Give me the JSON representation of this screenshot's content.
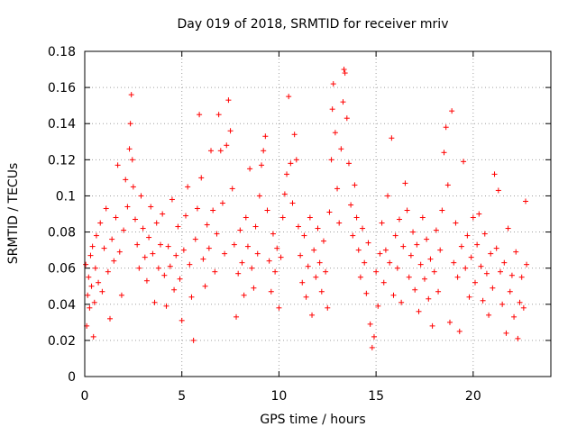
{
  "chart_data": {
    "type": "scatter",
    "title": "Day 019 of 2018, SRMTID for receiver mriv",
    "xlabel": "GPS time / hours",
    "ylabel": "SRMTID / TECUs",
    "xlim": [
      0,
      24
    ],
    "ylim": [
      0,
      0.18
    ],
    "xticks": [
      0,
      5,
      10,
      15,
      20
    ],
    "xtick_labels": [
      "0",
      "5",
      "10",
      "15",
      "20"
    ],
    "yticks": [
      0,
      0.02,
      0.04,
      0.06,
      0.08,
      0.1,
      0.12,
      0.14,
      0.16,
      0.18
    ],
    "ytick_labels": [
      "0",
      "0.02",
      "0.04",
      "0.06",
      "0.08",
      "0.1",
      "0.12",
      "0.14",
      "0.16",
      "0.18"
    ],
    "grid": true,
    "marker": "+",
    "color": "#ff0000",
    "series": [
      {
        "points": [
          [
            0.05,
            0.062
          ],
          [
            0.1,
            0.028
          ],
          [
            0.15,
            0.045
          ],
          [
            0.2,
            0.055
          ],
          [
            0.25,
            0.038
          ],
          [
            0.3,
            0.067
          ],
          [
            0.35,
            0.05
          ],
          [
            0.4,
            0.072
          ],
          [
            0.45,
            0.022
          ],
          [
            0.5,
            0.041
          ],
          [
            0.55,
            0.06
          ],
          [
            0.6,
            0.078
          ],
          [
            0.7,
            0.052
          ],
          [
            0.8,
            0.085
          ],
          [
            0.9,
            0.047
          ],
          [
            1.0,
            0.071
          ],
          [
            1.1,
            0.093
          ],
          [
            1.2,
            0.058
          ],
          [
            1.3,
            0.032
          ],
          [
            1.4,
            0.076
          ],
          [
            1.5,
            0.064
          ],
          [
            1.6,
            0.088
          ],
          [
            1.7,
            0.117
          ],
          [
            1.8,
            0.069
          ],
          [
            1.9,
            0.045
          ],
          [
            2.0,
            0.081
          ],
          [
            2.1,
            0.109
          ],
          [
            2.2,
            0.094
          ],
          [
            2.3,
            0.126
          ],
          [
            2.35,
            0.14
          ],
          [
            2.4,
            0.156
          ],
          [
            2.45,
            0.12
          ],
          [
            2.5,
            0.105
          ],
          [
            2.6,
            0.087
          ],
          [
            2.7,
            0.073
          ],
          [
            2.8,
            0.06
          ],
          [
            2.9,
            0.1
          ],
          [
            3.0,
            0.082
          ],
          [
            3.1,
            0.066
          ],
          [
            3.2,
            0.053
          ],
          [
            3.3,
            0.077
          ],
          [
            3.4,
            0.094
          ],
          [
            3.5,
            0.068
          ],
          [
            3.6,
            0.041
          ],
          [
            3.7,
            0.085
          ],
          [
            3.8,
            0.06
          ],
          [
            3.9,
            0.073
          ],
          [
            4.0,
            0.09
          ],
          [
            4.1,
            0.056
          ],
          [
            4.2,
            0.039
          ],
          [
            4.3,
            0.072
          ],
          [
            4.4,
            0.061
          ],
          [
            4.5,
            0.098
          ],
          [
            4.6,
            0.048
          ],
          [
            4.7,
            0.067
          ],
          [
            4.8,
            0.083
          ],
          [
            4.9,
            0.054
          ],
          [
            5.0,
            0.031
          ],
          [
            5.1,
            0.07
          ],
          [
            5.2,
            0.089
          ],
          [
            5.3,
            0.105
          ],
          [
            5.4,
            0.062
          ],
          [
            5.5,
            0.044
          ],
          [
            5.6,
            0.02
          ],
          [
            5.7,
            0.076
          ],
          [
            5.8,
            0.093
          ],
          [
            5.9,
            0.145
          ],
          [
            6.0,
            0.11
          ],
          [
            6.1,
            0.065
          ],
          [
            6.2,
            0.05
          ],
          [
            6.3,
            0.084
          ],
          [
            6.4,
            0.071
          ],
          [
            6.5,
            0.125
          ],
          [
            6.6,
            0.092
          ],
          [
            6.7,
            0.058
          ],
          [
            6.8,
            0.079
          ],
          [
            6.9,
            0.145
          ],
          [
            7.0,
            0.125
          ],
          [
            7.1,
            0.096
          ],
          [
            7.2,
            0.068
          ],
          [
            7.3,
            0.128
          ],
          [
            7.4,
            0.153
          ],
          [
            7.5,
            0.136
          ],
          [
            7.6,
            0.104
          ],
          [
            7.7,
            0.073
          ],
          [
            7.8,
            0.033
          ],
          [
            7.9,
            0.057
          ],
          [
            8.0,
            0.081
          ],
          [
            8.1,
            0.063
          ],
          [
            8.2,
            0.045
          ],
          [
            8.3,
            0.088
          ],
          [
            8.4,
            0.072
          ],
          [
            8.5,
            0.115
          ],
          [
            8.6,
            0.06
          ],
          [
            8.7,
            0.049
          ],
          [
            8.8,
            0.083
          ],
          [
            8.9,
            0.068
          ],
          [
            9.0,
            0.1
          ],
          [
            9.1,
            0.117
          ],
          [
            9.2,
            0.125
          ],
          [
            9.3,
            0.133
          ],
          [
            9.4,
            0.092
          ],
          [
            9.5,
            0.064
          ],
          [
            9.6,
            0.047
          ],
          [
            9.7,
            0.079
          ],
          [
            9.8,
            0.058
          ],
          [
            9.9,
            0.071
          ],
          [
            10.0,
            0.038
          ],
          [
            10.1,
            0.066
          ],
          [
            10.2,
            0.088
          ],
          [
            10.3,
            0.101
          ],
          [
            10.4,
            0.112
          ],
          [
            10.5,
            0.155
          ],
          [
            10.6,
            0.118
          ],
          [
            10.7,
            0.096
          ],
          [
            10.8,
            0.134
          ],
          [
            10.9,
            0.12
          ],
          [
            11.0,
            0.083
          ],
          [
            11.1,
            0.067
          ],
          [
            11.2,
            0.052
          ],
          [
            11.3,
            0.078
          ],
          [
            11.4,
            0.044
          ],
          [
            11.5,
            0.061
          ],
          [
            11.6,
            0.088
          ],
          [
            11.7,
            0.034
          ],
          [
            11.8,
            0.07
          ],
          [
            11.9,
            0.055
          ],
          [
            12.0,
            0.082
          ],
          [
            12.1,
            0.063
          ],
          [
            12.2,
            0.047
          ],
          [
            12.3,
            0.075
          ],
          [
            12.4,
            0.058
          ],
          [
            12.5,
            0.038
          ],
          [
            12.6,
            0.091
          ],
          [
            12.7,
            0.12
          ],
          [
            12.75,
            0.148
          ],
          [
            12.8,
            0.162
          ],
          [
            12.9,
            0.135
          ],
          [
            13.0,
            0.104
          ],
          [
            13.1,
            0.085
          ],
          [
            13.2,
            0.126
          ],
          [
            13.3,
            0.152
          ],
          [
            13.35,
            0.17
          ],
          [
            13.4,
            0.168
          ],
          [
            13.5,
            0.143
          ],
          [
            13.6,
            0.118
          ],
          [
            13.7,
            0.095
          ],
          [
            13.8,
            0.078
          ],
          [
            13.9,
            0.106
          ],
          [
            14.0,
            0.088
          ],
          [
            14.1,
            0.07
          ],
          [
            14.2,
            0.055
          ],
          [
            14.3,
            0.082
          ],
          [
            14.4,
            0.063
          ],
          [
            14.5,
            0.046
          ],
          [
            14.6,
            0.074
          ],
          [
            14.7,
            0.029
          ],
          [
            14.8,
            0.016
          ],
          [
            14.9,
            0.022
          ],
          [
            15.0,
            0.058
          ],
          [
            15.1,
            0.039
          ],
          [
            15.2,
            0.068
          ],
          [
            15.3,
            0.085
          ],
          [
            15.4,
            0.052
          ],
          [
            15.5,
            0.07
          ],
          [
            15.6,
            0.1
          ],
          [
            15.7,
            0.063
          ],
          [
            15.8,
            0.132
          ],
          [
            15.9,
            0.045
          ],
          [
            16.0,
            0.078
          ],
          [
            16.1,
            0.06
          ],
          [
            16.2,
            0.087
          ],
          [
            16.3,
            0.041
          ],
          [
            16.4,
            0.072
          ],
          [
            16.5,
            0.107
          ],
          [
            16.6,
            0.092
          ],
          [
            16.7,
            0.055
          ],
          [
            16.8,
            0.067
          ],
          [
            16.9,
            0.08
          ],
          [
            17.0,
            0.048
          ],
          [
            17.1,
            0.073
          ],
          [
            17.2,
            0.036
          ],
          [
            17.3,
            0.062
          ],
          [
            17.4,
            0.088
          ],
          [
            17.5,
            0.054
          ],
          [
            17.6,
            0.076
          ],
          [
            17.7,
            0.043
          ],
          [
            17.8,
            0.065
          ],
          [
            17.9,
            0.028
          ],
          [
            18.0,
            0.058
          ],
          [
            18.1,
            0.081
          ],
          [
            18.2,
            0.047
          ],
          [
            18.3,
            0.07
          ],
          [
            18.4,
            0.092
          ],
          [
            18.5,
            0.124
          ],
          [
            18.6,
            0.138
          ],
          [
            18.7,
            0.106
          ],
          [
            18.8,
            0.03
          ],
          [
            18.9,
            0.147
          ],
          [
            19.0,
            0.063
          ],
          [
            19.1,
            0.085
          ],
          [
            19.2,
            0.055
          ],
          [
            19.3,
            0.025
          ],
          [
            19.4,
            0.072
          ],
          [
            19.5,
            0.119
          ],
          [
            19.6,
            0.06
          ],
          [
            19.7,
            0.078
          ],
          [
            19.8,
            0.044
          ],
          [
            19.9,
            0.066
          ],
          [
            20.0,
            0.088
          ],
          [
            20.1,
            0.052
          ],
          [
            20.2,
            0.073
          ],
          [
            20.3,
            0.09
          ],
          [
            20.4,
            0.061
          ],
          [
            20.5,
            0.042
          ],
          [
            20.6,
            0.079
          ],
          [
            20.7,
            0.057
          ],
          [
            20.8,
            0.034
          ],
          [
            20.9,
            0.068
          ],
          [
            21.0,
            0.049
          ],
          [
            21.1,
            0.112
          ],
          [
            21.2,
            0.071
          ],
          [
            21.3,
            0.103
          ],
          [
            21.4,
            0.058
          ],
          [
            21.5,
            0.04
          ],
          [
            21.6,
            0.063
          ],
          [
            21.7,
            0.024
          ],
          [
            21.8,
            0.082
          ],
          [
            21.9,
            0.047
          ],
          [
            22.0,
            0.056
          ],
          [
            22.1,
            0.033
          ],
          [
            22.2,
            0.069
          ],
          [
            22.3,
            0.021
          ],
          [
            22.4,
            0.041
          ],
          [
            22.5,
            0.055
          ],
          [
            22.6,
            0.038
          ],
          [
            22.7,
            0.097
          ],
          [
            22.75,
            0.062
          ]
        ]
      }
    ]
  }
}
